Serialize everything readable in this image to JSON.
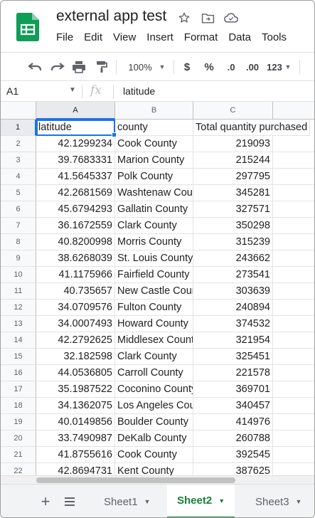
{
  "app": {
    "title": "external app test",
    "menu": [
      "File",
      "Edit",
      "View",
      "Insert",
      "Format",
      "Data",
      "Tools"
    ],
    "brand_color": "#0f9d58"
  },
  "toolbar": {
    "undo_icon": "undo-icon",
    "redo_icon": "redo-icon",
    "print_icon": "print-icon",
    "paint_format_icon": "paint-format-icon",
    "zoom": "100%",
    "currency": "$",
    "percent": "%",
    "decrease_decimal": ".0",
    "increase_decimal": ".00",
    "more_formats": "123"
  },
  "formula_bar": {
    "cell_ref": "A1",
    "fx": "fx",
    "content": "latitude"
  },
  "grid": {
    "columns": [
      "A",
      "B",
      "C",
      ""
    ],
    "rows": [
      {
        "n": "1",
        "a": "latitude",
        "b": "county",
        "c": "Total quantity purchased"
      },
      {
        "n": "2",
        "a": "42.1299234",
        "b": "Cook County",
        "c": "219093"
      },
      {
        "n": "3",
        "a": "39.7683331",
        "b": "Marion County",
        "c": "215244"
      },
      {
        "n": "4",
        "a": "41.5645337",
        "b": "Polk County",
        "c": "297795"
      },
      {
        "n": "5",
        "a": "42.2681569",
        "b": "Washtenaw County",
        "c": "345281"
      },
      {
        "n": "6",
        "a": "45.6794293",
        "b": "Gallatin County",
        "c": "327571"
      },
      {
        "n": "7",
        "a": "36.1672559",
        "b": "Clark County",
        "c": "350298"
      },
      {
        "n": "8",
        "a": "40.8200998",
        "b": "Morris County",
        "c": "315239"
      },
      {
        "n": "9",
        "a": "38.6268039",
        "b": "St. Louis County",
        "c": "243662"
      },
      {
        "n": "10",
        "a": "41.1175966",
        "b": "Fairfield County",
        "c": "273541"
      },
      {
        "n": "11",
        "a": "40.735657",
        "b": "New Castle County",
        "c": "303639"
      },
      {
        "n": "12",
        "a": "34.0709576",
        "b": "Fulton County",
        "c": "240894"
      },
      {
        "n": "13",
        "a": "34.0007493",
        "b": "Howard County",
        "c": "374532"
      },
      {
        "n": "14",
        "a": "42.2792625",
        "b": "Middlesex County",
        "c": "321954"
      },
      {
        "n": "15",
        "a": "32.182598",
        "b": "Clark County",
        "c": "325451"
      },
      {
        "n": "16",
        "a": "44.0536805",
        "b": "Carroll County",
        "c": "221578"
      },
      {
        "n": "17",
        "a": "35.1987522",
        "b": "Coconino County",
        "c": "369701"
      },
      {
        "n": "18",
        "a": "34.1362075",
        "b": "Los Angeles County",
        "c": "340457"
      },
      {
        "n": "19",
        "a": "40.0149856",
        "b": "Boulder County",
        "c": "414976"
      },
      {
        "n": "20",
        "a": "33.7490987",
        "b": "DeKalb County",
        "c": "260788"
      },
      {
        "n": "21",
        "a": "41.8755616",
        "b": "Cook County",
        "c": "392545"
      },
      {
        "n": "22",
        "a": "42.8694731",
        "b": "Kent County",
        "c": "387625"
      }
    ],
    "selection_color": "#1a73e8"
  },
  "sheets": {
    "tabs": [
      "Sheet1",
      "Sheet2",
      "Sheet3"
    ],
    "active": "Sheet2",
    "active_color": "#188038"
  }
}
